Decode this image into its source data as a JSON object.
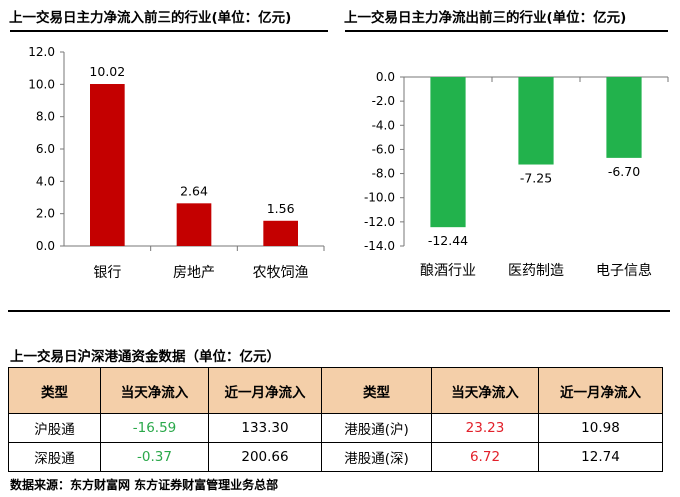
{
  "chart_data": [
    {
      "type": "bar",
      "title": "上一交易日主力净流入前三的行业(单位：亿元)",
      "categories": [
        "银行",
        "房地产",
        "农牧饲渔"
      ],
      "values": [
        10.02,
        2.64,
        1.56
      ],
      "value_labels": [
        "10.02",
        "2.64",
        "1.56"
      ],
      "ylim": [
        0,
        12
      ],
      "yticks": [
        "0.0",
        "2.0",
        "4.0",
        "6.0",
        "8.0",
        "10.0",
        "12.0"
      ],
      "color": "#c40000",
      "grid": false
    },
    {
      "type": "bar",
      "title": "上一交易日主力净流出前三的行业(单位：亿元)",
      "categories": [
        "酿酒行业",
        "医药制造",
        "电子信息"
      ],
      "values": [
        -12.44,
        -7.25,
        -6.7
      ],
      "value_labels": [
        "-12.44",
        "-7.25",
        "-6.70"
      ],
      "ylim": [
        -14,
        0
      ],
      "yticks": [
        "0.0",
        "-2.0",
        "-4.0",
        "-6.0",
        "-8.0",
        "-10.0",
        "-12.0",
        "-14.0"
      ],
      "color": "#22b24c",
      "grid": false
    },
    {
      "type": "table",
      "title": "上一交易日沪深港通资金数据（单位：亿元）",
      "headers": [
        "类型",
        "当天净流入",
        "近一月净流入",
        "类型",
        "当天净流入",
        "近一月净流入"
      ],
      "rows": [
        [
          "沪股通",
          "-16.59",
          "133.30",
          "港股通(沪)",
          "23.23",
          "10.98"
        ],
        [
          "深股通",
          "-0.37",
          "200.66",
          "港股通(深)",
          "6.72",
          "12.74"
        ]
      ]
    }
  ],
  "source": "数据来源：东方财富网   东方证券财富管理业务总部"
}
